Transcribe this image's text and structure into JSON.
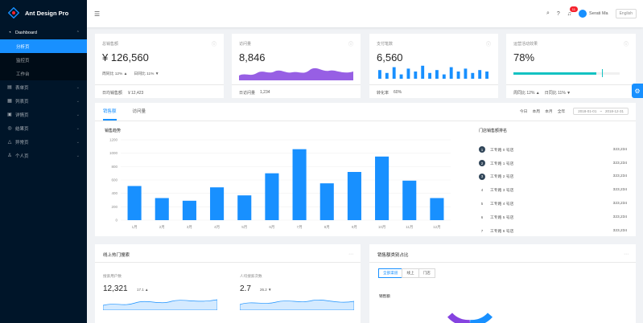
{
  "app": {
    "title": "Ant Design Pro"
  },
  "sidebar": {
    "items": [
      {
        "label": "Dashboard",
        "icon": "dashboard-icon",
        "open": true,
        "children": [
          {
            "label": "分析页",
            "active": true
          },
          {
            "label": "监控页",
            "active": false
          },
          {
            "label": "工作台",
            "active": false
          }
        ]
      },
      {
        "label": "表单页",
        "icon": "form-icon"
      },
      {
        "label": "列表页",
        "icon": "table-icon"
      },
      {
        "label": "详情页",
        "icon": "profile-icon"
      },
      {
        "label": "结果页",
        "icon": "check-circle-icon"
      },
      {
        "label": "异常页",
        "icon": "warning-icon"
      },
      {
        "label": "个人页",
        "icon": "user-icon"
      }
    ]
  },
  "header": {
    "notification_count": "11",
    "user_name": "Serati Ma",
    "lang": "English"
  },
  "stats": [
    {
      "title": "总销售额",
      "value": "¥ 126,560",
      "line_a": "周同比 12% ▲",
      "line_b": "日同比 11% ▼",
      "footer_label": "日均销售额",
      "footer_value": "￥12,423"
    },
    {
      "title": "访问量",
      "value": "8,846",
      "footer_label": "日访问量",
      "footer_value": "1,234"
    },
    {
      "title": "支付笔数",
      "value": "6,560",
      "footer_label": "转化率",
      "footer_value": "60%"
    },
    {
      "title": "运营活动效果",
      "value": "78%",
      "footer_a": "周同比 12% ▲",
      "footer_b": "日同比 11% ▼",
      "progress": 0.78
    }
  ],
  "colors": {
    "primary": "#1890ff",
    "visits": "#975fe4",
    "progress": "#13c2c2",
    "sidebar": "#001529"
  },
  "sales": {
    "tabs": [
      "销售额",
      "访问量"
    ],
    "periods": [
      "今日",
      "本周",
      "本月",
      "全年"
    ],
    "date_start": "2018-01-01",
    "date_end": "2018-12-31",
    "chart_title": "销售趋势",
    "rank_title": "门店销售额排名",
    "rank": [
      {
        "no": "1",
        "name": "工专路 0 号店",
        "value": "323,234"
      },
      {
        "no": "2",
        "name": "工专路 1 号店",
        "value": "323,234"
      },
      {
        "no": "3",
        "name": "工专路 2 号店",
        "value": "323,234"
      },
      {
        "no": "4",
        "name": "工专路 3 号店",
        "value": "323,234"
      },
      {
        "no": "5",
        "name": "工专路 4 号店",
        "value": "323,234"
      },
      {
        "no": "6",
        "name": "工专路 5 号店",
        "value": "323,234"
      },
      {
        "no": "7",
        "name": "工专路 6 号店",
        "value": "323,234"
      }
    ]
  },
  "chart_data": {
    "type": "bar",
    "categories": [
      "1月",
      "2月",
      "3月",
      "4月",
      "5月",
      "6月",
      "7月",
      "8月",
      "9月",
      "10月",
      "11月",
      "12月"
    ],
    "values": [
      510,
      330,
      290,
      490,
      370,
      700,
      1060,
      550,
      720,
      950,
      590,
      330
    ],
    "ylim": [
      0,
      1200
    ],
    "yticks": [
      "0",
      "200",
      "400",
      "600",
      "800",
      "1000",
      "1200"
    ],
    "title": "销售趋势"
  },
  "search": {
    "title": "线上热门搜索",
    "label_users": "搜索用户数",
    "users": "12,321",
    "users_rate": "17.1 ▲",
    "label_avg": "人均搜索次数",
    "avg": "2.7",
    "avg_rate": "26.2 ▼"
  },
  "category": {
    "title": "销售额类别占比",
    "segments": [
      "全部渠道",
      "线上",
      "门店"
    ],
    "subtitle": "销售额"
  }
}
